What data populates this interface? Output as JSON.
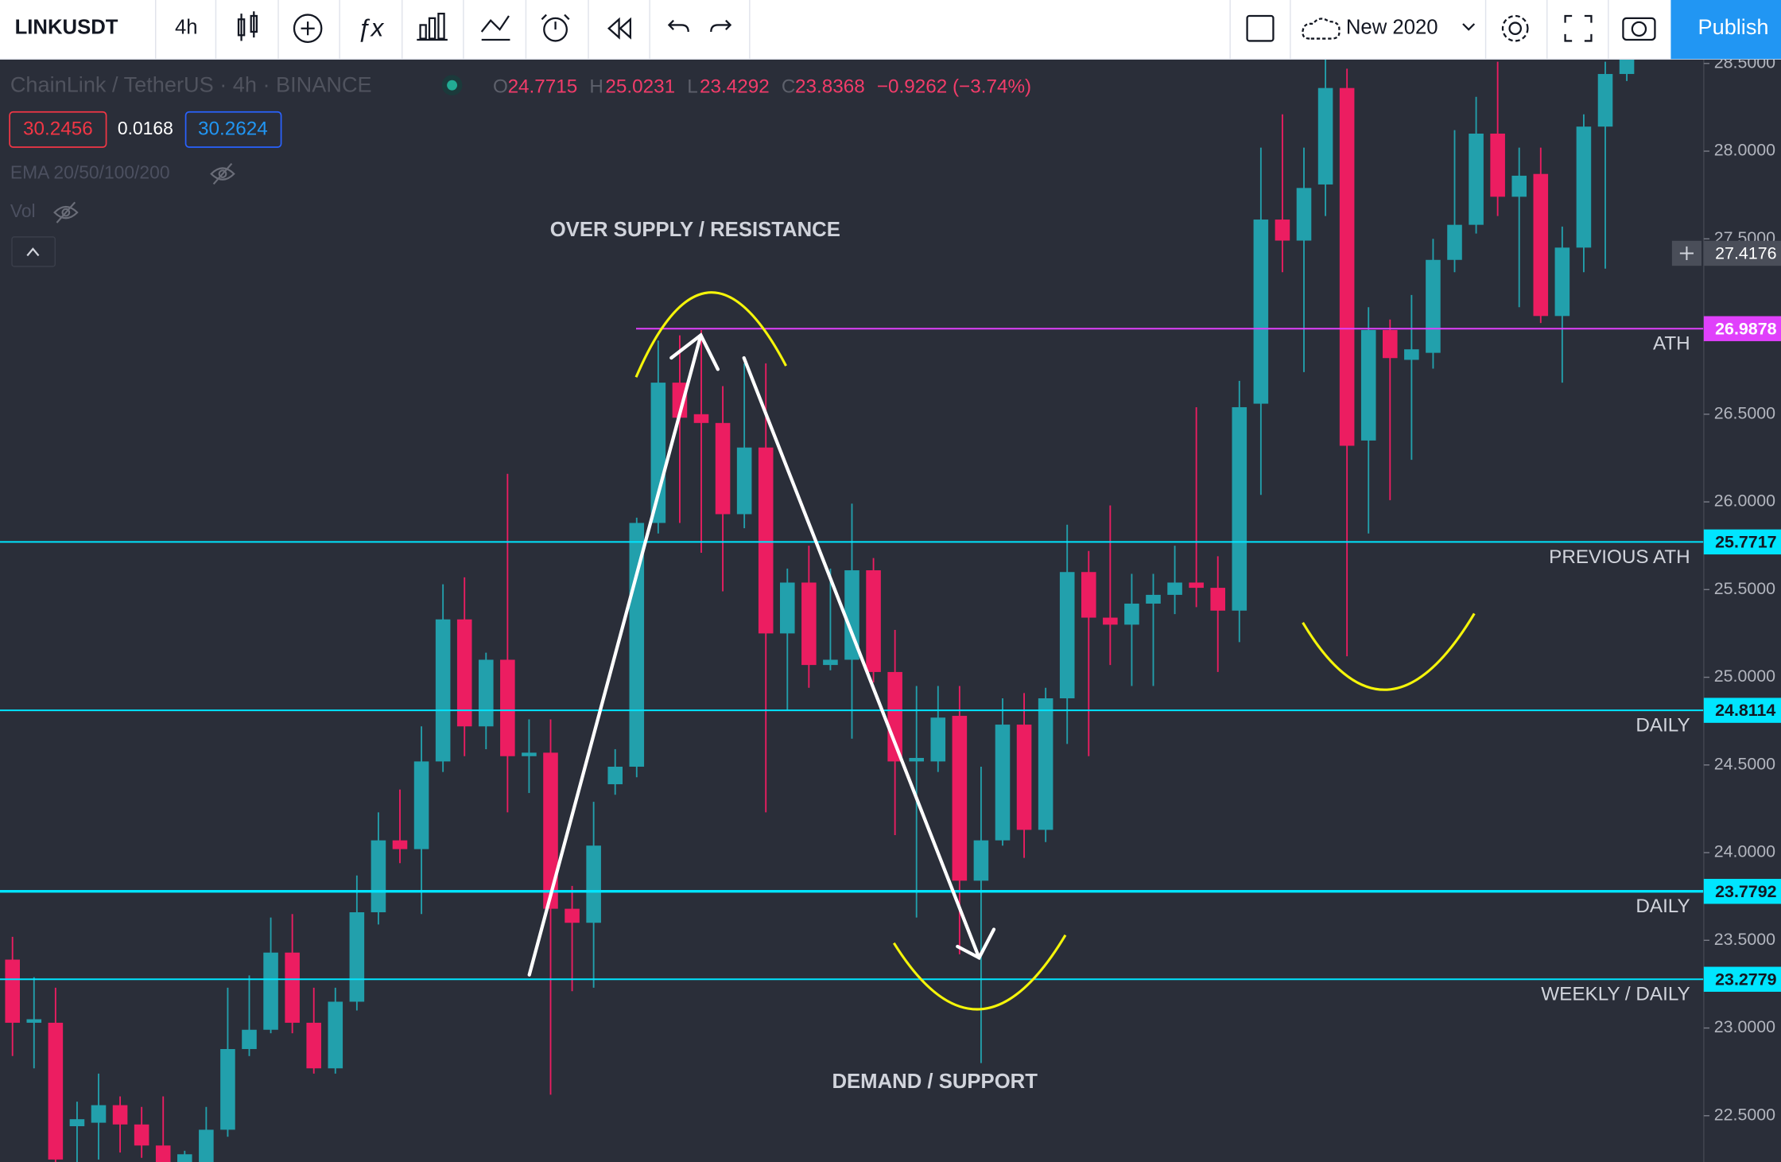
{
  "toolbar": {
    "symbol": "LINKUSDT",
    "interval": "4h",
    "layout": "New 2020",
    "publish": "Publish"
  },
  "legend": {
    "title": "ChainLink / TetherUS · 4h · BINANCE",
    "ohlc": [
      {
        "key": "O",
        "value": "24.7715"
      },
      {
        "key": "H",
        "value": "25.0231"
      },
      {
        "key": "L",
        "value": "23.4292"
      },
      {
        "key": "C",
        "value": "23.8368"
      }
    ],
    "change": "−0.9262 (−3.74%)",
    "bid": "30.2456",
    "spread": "0.0168",
    "ask": "30.2624",
    "indicators": [
      "EMA 20/50/100/200",
      "Vol"
    ]
  },
  "chart_data": {
    "type": "candlestick",
    "up_color": "#22a0ac",
    "down_color": "#ec1d61",
    "open": [
      23.39,
      23.03,
      23.03,
      22.44,
      22.46,
      22.56,
      22.45,
      22.33,
      22.23,
      22.2,
      22.42,
      22.88,
      22.99,
      23.43,
      23.03,
      22.77,
      23.15,
      23.66,
      24.07,
      24.02,
      24.52,
      25.33,
      24.72,
      25.1,
      24.55,
      24.57,
      23.68,
      23.6,
      24.39,
      24.49,
      25.88,
      26.68,
      26.5,
      26.45,
      25.93,
      26.31,
      25.25,
      25.54,
      25.07,
      25.1,
      25.61,
      25.03,
      24.52,
      24.52,
      24.78,
      23.84,
      24.07,
      24.73,
      24.13,
      24.88,
      25.6,
      25.34,
      25.3,
      25.42,
      25.47,
      25.54,
      25.51,
      25.38,
      26.56,
      27.61,
      27.49,
      27.81,
      28.36,
      26.35,
      26.98,
      26.81,
      26.85,
      27.38,
      27.58,
      28.1,
      27.74,
      27.87,
      27.06,
      27.45,
      28.14,
      28.44
    ],
    "high": [
      23.52,
      23.29,
      23.23,
      22.58,
      22.74,
      22.61,
      22.55,
      22.61,
      22.3,
      22.55,
      23.23,
      23.3,
      23.63,
      23.65,
      23.23,
      23.23,
      23.87,
      24.23,
      24.36,
      24.72,
      25.53,
      25.57,
      25.14,
      26.16,
      24.76,
      24.76,
      23.81,
      24.29,
      24.59,
      25.91,
      26.92,
      26.95,
      26.98,
      26.66,
      26.79,
      26.79,
      25.62,
      25.75,
      25.62,
      25.99,
      25.68,
      25.27,
      24.95,
      24.95,
      24.95,
      24.49,
      24.88,
      24.91,
      24.94,
      25.87,
      25.72,
      25.98,
      25.59,
      25.59,
      25.75,
      26.54,
      25.69,
      26.69,
      28.02,
      28.21,
      28.02,
      28.54,
      28.47,
      27.11,
      27.04,
      27.18,
      27.5,
      28.12,
      28.31,
      28.51,
      28.02,
      28.02,
      27.57,
      28.21,
      28.51,
      28.57
    ],
    "low": [
      22.84,
      22.77,
      22.23,
      22.23,
      22.25,
      22.29,
      22.26,
      22.23,
      22.2,
      22.2,
      22.38,
      22.84,
      22.97,
      22.97,
      22.74,
      22.74,
      23.1,
      23.59,
      23.94,
      23.65,
      24.46,
      24.55,
      24.59,
      24.23,
      24.34,
      22.62,
      23.21,
      23.23,
      24.33,
      24.43,
      25.82,
      25.88,
      25.71,
      25.49,
      25.85,
      24.23,
      24.81,
      24.94,
      25.04,
      24.65,
      24.97,
      24.1,
      23.63,
      24.46,
      23.42,
      22.8,
      24.04,
      23.97,
      24.06,
      24.62,
      24.55,
      25.07,
      24.95,
      24.95,
      25.36,
      25.4,
      25.03,
      25.2,
      26.04,
      27.31,
      26.74,
      27.63,
      25.12,
      25.82,
      26.01,
      26.24,
      26.76,
      27.31,
      27.53,
      27.63,
      27.11,
      27.02,
      26.68,
      27.31,
      27.33,
      28.4
    ],
    "close": [
      23.03,
      23.05,
      22.25,
      22.48,
      22.56,
      22.45,
      22.33,
      22.23,
      22.28,
      22.42,
      22.88,
      22.99,
      23.43,
      23.03,
      22.77,
      23.15,
      23.66,
      24.07,
      24.02,
      24.52,
      25.33,
      24.72,
      25.1,
      24.55,
      24.57,
      23.68,
      23.6,
      24.04,
      24.49,
      25.88,
      26.68,
      26.48,
      26.45,
      25.93,
      26.31,
      25.25,
      25.54,
      25.07,
      25.1,
      25.61,
      25.03,
      24.52,
      24.54,
      24.77,
      23.84,
      24.07,
      24.73,
      24.13,
      24.88,
      25.6,
      25.34,
      25.3,
      25.42,
      25.47,
      25.54,
      25.51,
      25.38,
      26.54,
      27.61,
      27.49,
      27.79,
      28.36,
      26.32,
      26.98,
      26.82,
      26.87,
      27.38,
      27.58,
      28.1,
      27.74,
      27.86,
      27.06,
      27.45,
      28.14,
      28.44,
      28.54
    ],
    "ylim": [
      22.234,
      28.525
    ],
    "yticks": [
      {
        "value": 22.5,
        "label": "22.5000"
      },
      {
        "value": 23,
        "label": "23.0000"
      },
      {
        "value": 23.5,
        "label": "23.5000"
      },
      {
        "value": 24,
        "label": "24.0000"
      },
      {
        "value": 24.5,
        "label": "24.5000"
      },
      {
        "value": 25,
        "label": "25.0000"
      },
      {
        "value": 25.5,
        "label": "25.5000"
      },
      {
        "value": 26,
        "label": "26.0000"
      },
      {
        "value": 26.5,
        "label": "26.5000"
      },
      {
        "value": 27,
        "label": "27.0000"
      },
      {
        "value": 27.5,
        "label": "27.5000"
      },
      {
        "value": 28,
        "label": "28.0000"
      },
      {
        "value": 28.5,
        "label": "28.5000"
      }
    ],
    "grid": false,
    "levels": [
      {
        "value": 26.9878,
        "label": "26.9878",
        "name": "ATH",
        "color": "#e040fb"
      },
      {
        "value": 25.7717,
        "label": "25.7717",
        "name": "PREVIOUS ATH",
        "color": "#00e5ff"
      },
      {
        "value": 24.8114,
        "label": "24.8114",
        "name": "DAILY",
        "color": "#00e5ff"
      },
      {
        "value": 23.7792,
        "label": "23.7792",
        "name": "DAILY",
        "color": "#00e5ff"
      },
      {
        "value": 23.2779,
        "label": "23.2779",
        "name": "WEEKLY / DAILY",
        "color": "#00e5ff"
      }
    ],
    "crosshair": {
      "value": 27.4176,
      "label": "27.4176"
    },
    "annotations": [
      "OVER SUPPLY / RESISTANCE",
      "DEMAND / SUPPORT"
    ]
  }
}
